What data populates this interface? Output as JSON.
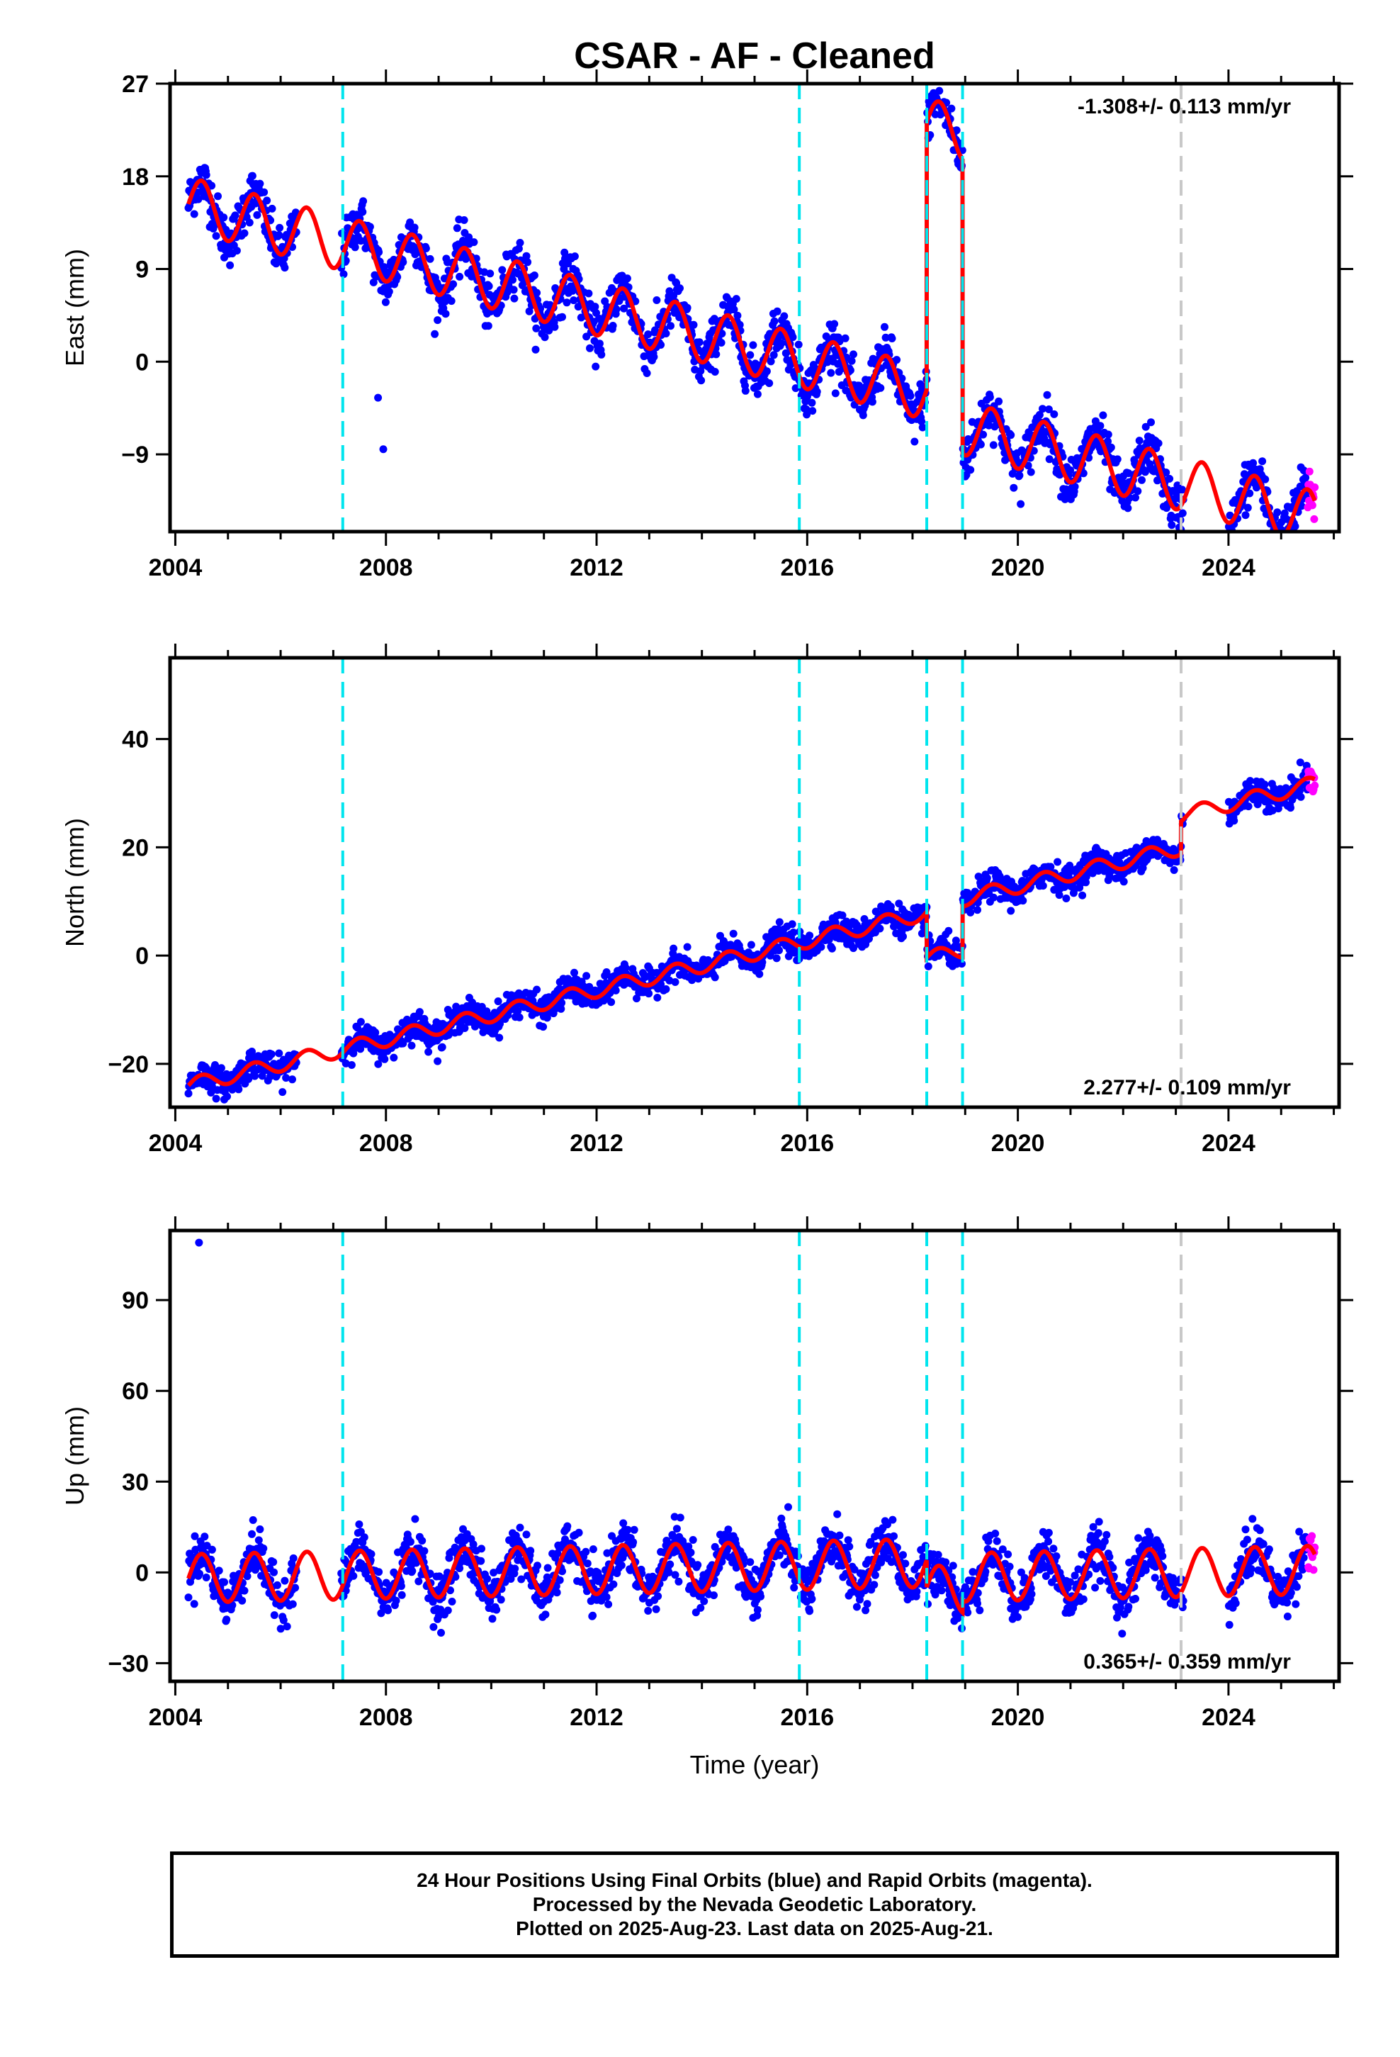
{
  "title": "CSAR  - AF - Cleaned",
  "footer": {
    "line1": "24 Hour Positions Using Final Orbits (blue) and Rapid Orbits (magenta).",
    "line2": "Processed by the Nevada Geodetic Laboratory.",
    "line3": "Plotted on 2025-Aug-23. Last data on 2025-Aug-21."
  },
  "colors": {
    "final_orbits": "#0000ff",
    "rapid_orbits": "#ff00ff",
    "model": "#ff0000",
    "equipment_change": "#00e5ee",
    "earthquake": "#c8c8c8"
  },
  "chart_data": [
    {
      "type": "scatter",
      "component": "east",
      "xlabel": "",
      "ylabel": "East (mm)",
      "xlim": [
        2003.9,
        2026.1
      ],
      "ylim": [
        -16.5,
        27
      ],
      "xticks": [
        2004,
        2008,
        2012,
        2016,
        2020,
        2024
      ],
      "yticks": [
        -9,
        0,
        9,
        18,
        27
      ],
      "rate_label": "-1.308+/- 0.113 mm/yr",
      "rate_position": "top-right",
      "data_start": 2004.25,
      "data_end": 2025.64,
      "rapid_start": 2025.5,
      "rate_mm_per_yr": -1.308,
      "intercept_mm": 15.3,
      "annual_amplitude_mm": 2.6,
      "noise_mm": 1.2,
      "offsets": [
        {
          "year": 2018.27,
          "offset_mm": 26.0
        },
        {
          "year": 2018.95,
          "offset_mm": -28.5
        }
      ],
      "outliers": [
        {
          "x": 2007.95,
          "y": -8.5
        },
        {
          "x": 2007.85,
          "y": -3.5
        }
      ],
      "equipment_changes": [
        2007.18,
        2015.85,
        2018.27,
        2018.95
      ],
      "earthquakes": [
        2023.1
      ]
    },
    {
      "type": "scatter",
      "component": "north",
      "xlabel": "",
      "ylabel": "North (mm)",
      "xlim": [
        2003.9,
        2026.1
      ],
      "ylim": [
        -28,
        55
      ],
      "xticks": [
        2004,
        2008,
        2012,
        2016,
        2020,
        2024
      ],
      "yticks": [
        -20,
        0,
        20,
        40
      ],
      "rate_label": "2.277+/- 0.109 mm/yr",
      "rate_position": "bottom-right",
      "data_start": 2004.25,
      "data_end": 2025.64,
      "rapid_start": 2025.5,
      "rate_mm_per_yr": 2.277,
      "intercept_mm": -24.0,
      "annual_amplitude_mm": 1.4,
      "noise_mm": 1.3,
      "offsets": [
        {
          "year": 2018.27,
          "offset_mm": -8.5
        },
        {
          "year": 2018.95,
          "offset_mm": 9.5
        },
        {
          "year": 2023.1,
          "offset_mm": 6.0
        }
      ],
      "outliers": [],
      "equipment_changes": [
        2007.18,
        2015.85,
        2018.27,
        2018.95
      ],
      "earthquakes": [
        2023.1
      ]
    },
    {
      "type": "scatter",
      "component": "up",
      "xlabel": "Time (year)",
      "ylabel": "Up (mm)",
      "xlim": [
        2003.9,
        2026.1
      ],
      "ylim": [
        -36,
        113
      ],
      "xticks": [
        2004,
        2008,
        2012,
        2016,
        2020,
        2024
      ],
      "yticks": [
        -30,
        0,
        30,
        60,
        90
      ],
      "rate_label": "0.365+/- 0.359 mm/yr",
      "rate_position": "bottom-right",
      "data_start": 2004.25,
      "data_end": 2025.64,
      "rapid_start": 2025.5,
      "rate_mm_per_yr": 0.365,
      "intercept_mm": -2.0,
      "annual_amplitude_mm": 8.0,
      "noise_mm": 4.0,
      "offsets": [
        {
          "year": 2018.27,
          "offset_mm": -9.0
        },
        {
          "year": 2018.95,
          "offset_mm": 4.0
        }
      ],
      "outliers": [
        {
          "x": 2004.45,
          "y": 109
        }
      ],
      "equipment_changes": [
        2007.18,
        2015.85,
        2018.27,
        2018.95
      ],
      "earthquakes": [
        2023.1
      ]
    }
  ]
}
